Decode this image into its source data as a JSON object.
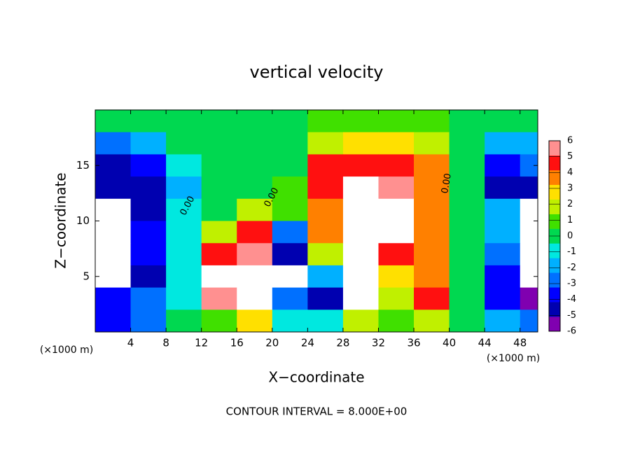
{
  "chart_data": {
    "type": "heatmap",
    "title": "vertical velocity",
    "x_label": "X−coordinate",
    "y_label": "Z−coordinate",
    "x_unit": "(×1000 m)",
    "y_unit": "(×1000 m)",
    "footnote": "CONTOUR INTERVAL = 8.000E+00",
    "contour_labels": [
      "0.00",
      "0.00",
      "0.00"
    ],
    "xlim": [
      0,
      50
    ],
    "ylim": [
      0,
      20
    ],
    "xticks": [
      4,
      8,
      12,
      16,
      20,
      24,
      28,
      32,
      36,
      40,
      44,
      48
    ],
    "yticks": [
      5,
      10,
      15
    ],
    "x": [
      2,
      6,
      10,
      14,
      18,
      22,
      26,
      30,
      34,
      38,
      42,
      46,
      50
    ],
    "y": [
      19,
      17,
      15,
      13,
      11,
      9,
      7,
      5,
      3,
      1
    ],
    "z": [
      [
        0,
        0,
        0,
        0,
        0,
        0,
        0.5,
        1,
        1,
        0.5,
        0,
        0,
        0
      ],
      [
        -3,
        -2,
        0,
        0,
        0,
        0,
        2,
        3,
        3,
        2,
        0,
        -2,
        -2
      ],
      [
        -5,
        -4,
        -1,
        0,
        0,
        0,
        5,
        5,
        5,
        4,
        0,
        -4,
        -3
      ],
      [
        -5,
        -5,
        -2,
        0,
        0,
        1,
        5,
        8,
        6,
        4,
        0,
        -5,
        -5
      ],
      [
        -10,
        -5,
        -1,
        0,
        2,
        1,
        4,
        10,
        8,
        4,
        0,
        -2,
        -10
      ],
      [
        -10,
        -4,
        -1,
        2,
        5,
        -3,
        4,
        10,
        8,
        4,
        0,
        -2,
        -10
      ],
      [
        -10,
        -4,
        -1,
        5,
        6,
        -5,
        2,
        10,
        5,
        4,
        0,
        -3,
        -10
      ],
      [
        -10,
        -5,
        -1,
        8,
        10,
        -8,
        -2,
        10,
        3,
        4,
        0,
        -4,
        -10
      ],
      [
        -4,
        -3,
        -1,
        6,
        10,
        -3,
        -5,
        10,
        2,
        5,
        0,
        -4,
        -6
      ],
      [
        -4,
        -3,
        0,
        1,
        3,
        -1,
        -1,
        2,
        1,
        2,
        0,
        -2,
        -3
      ]
    ],
    "colorbar": {
      "ticks": [
        -6,
        -5,
        -4,
        -3,
        -2,
        -1,
        0,
        1,
        2,
        3,
        4,
        5,
        6
      ],
      "colors": [
        "#8000b0",
        "#0000b0",
        "#0000ff",
        "#0070ff",
        "#00b0ff",
        "#00e8e0",
        "#00d850",
        "#40e000",
        "#c0f000",
        "#ffe000",
        "#ff8000",
        "#ff1010",
        "#ff9090"
      ]
    }
  }
}
